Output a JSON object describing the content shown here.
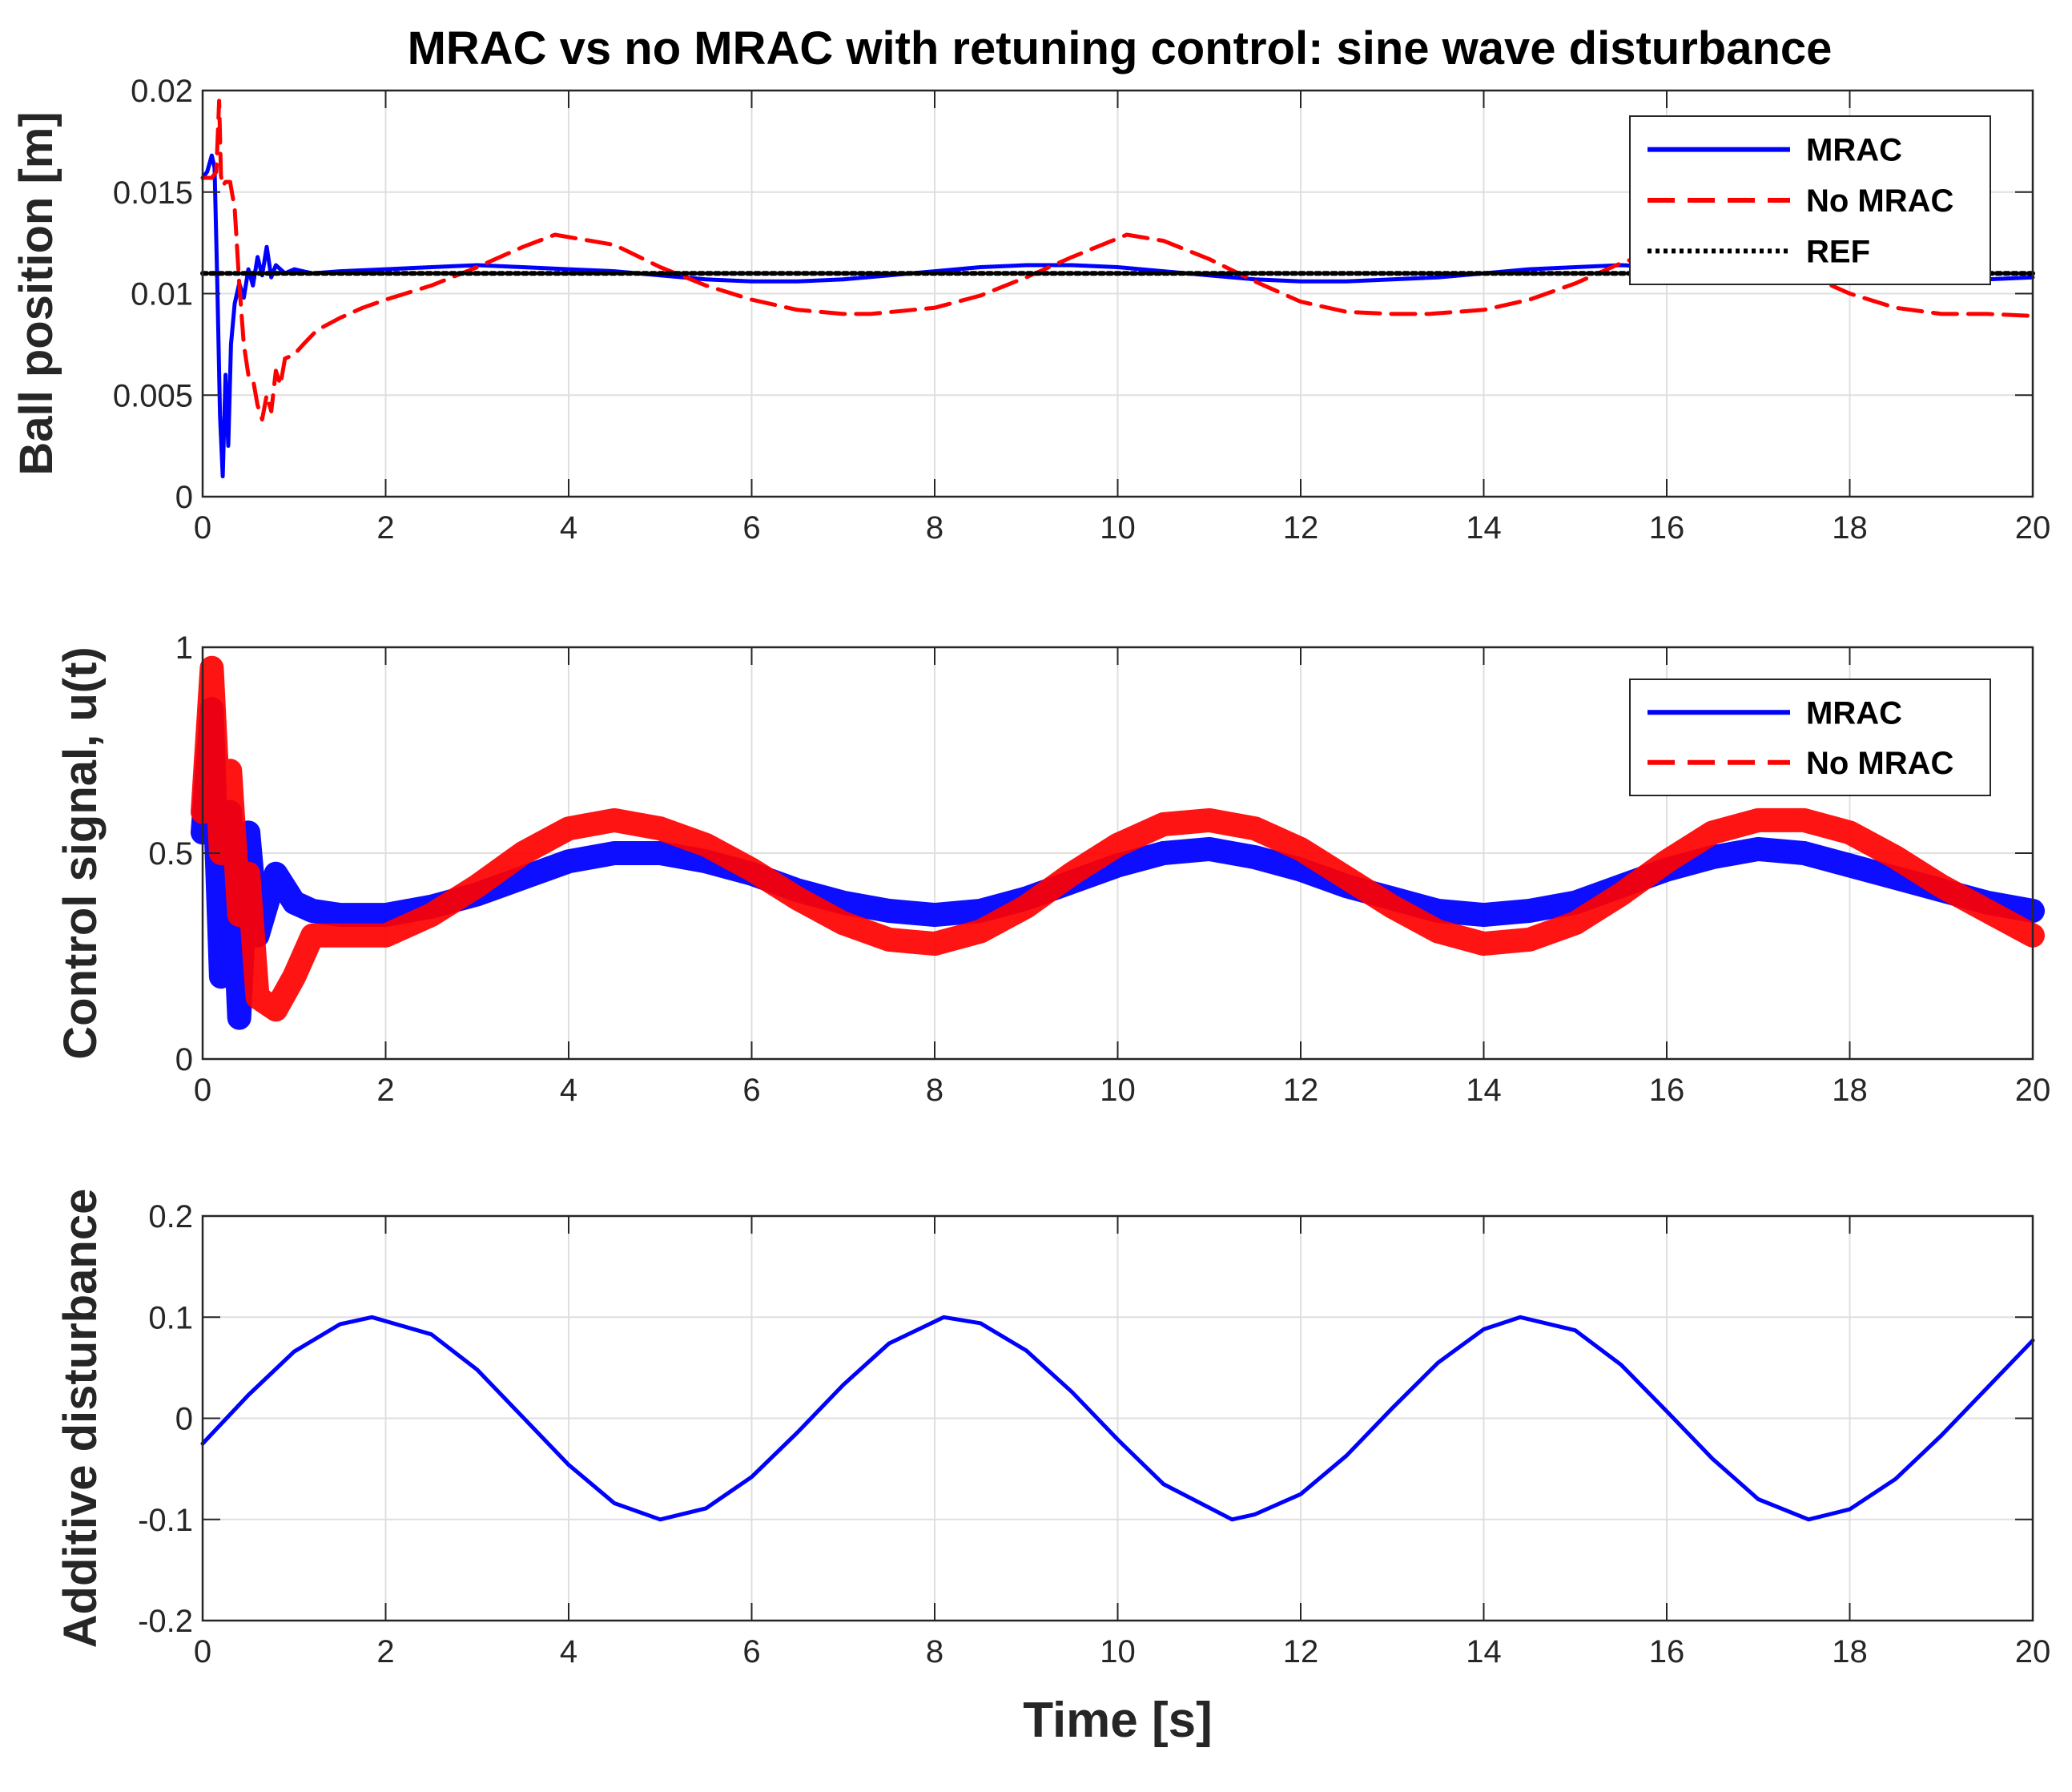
{
  "chart_data": [
    {
      "type": "line",
      "title": "MRAC vs no MRAC with retuning control: sine wave disturbance",
      "xlabel": "",
      "ylabel": "Ball position [m]",
      "xlim": [
        0,
        20
      ],
      "ylim": [
        0,
        0.02
      ],
      "xticks": [
        "0",
        "2",
        "4",
        "6",
        "8",
        "10",
        "12",
        "14",
        "16",
        "18",
        "20"
      ],
      "yticks": [
        "0",
        "0.005",
        "0.01",
        "0.015",
        "0.02"
      ],
      "grid": true,
      "legend_position": "top-right",
      "series": [
        {
          "name": "MRAC",
          "color": "#0000ff",
          "style": "solid",
          "x": [
            0,
            0.05,
            0.1,
            0.13,
            0.16,
            0.19,
            0.22,
            0.25,
            0.28,
            0.31,
            0.35,
            0.4,
            0.45,
            0.5,
            0.55,
            0.6,
            0.65,
            0.7,
            0.75,
            0.8,
            0.9,
            1.0,
            1.2,
            1.5,
            2,
            2.5,
            3,
            3.5,
            4,
            4.5,
            5,
            5.5,
            6,
            6.5,
            7,
            7.5,
            8,
            8.5,
            9,
            9.5,
            10,
            10.5,
            11,
            11.5,
            12,
            12.5,
            13,
            13.5,
            14,
            14.5,
            15,
            15.5,
            16,
            16.5,
            17,
            17.5,
            18,
            18.5,
            19,
            19.5,
            20
          ],
          "y": [
            0.0157,
            0.016,
            0.0168,
            0.0162,
            0.0105,
            0.004,
            0.001,
            0.006,
            0.0025,
            0.0075,
            0.0095,
            0.0105,
            0.0098,
            0.0112,
            0.0104,
            0.0118,
            0.0109,
            0.0123,
            0.0108,
            0.0114,
            0.011,
            0.0112,
            0.011,
            0.0111,
            0.0112,
            0.0113,
            0.0114,
            0.0113,
            0.0112,
            0.0111,
            0.0109,
            0.0107,
            0.0106,
            0.0106,
            0.0107,
            0.0109,
            0.0111,
            0.0113,
            0.0114,
            0.0114,
            0.0113,
            0.0111,
            0.0109,
            0.0107,
            0.0106,
            0.0106,
            0.0107,
            0.0108,
            0.011,
            0.0112,
            0.0113,
            0.0114,
            0.0113,
            0.0112,
            0.011,
            0.0108,
            0.0107,
            0.0106,
            0.0106,
            0.0107,
            0.0108
          ]
        },
        {
          "name": "No MRAC",
          "color": "#ff0000",
          "style": "dashed",
          "x": [
            0,
            0.1,
            0.15,
            0.18,
            0.2,
            0.22,
            0.25,
            0.3,
            0.35,
            0.4,
            0.45,
            0.5,
            0.55,
            0.6,
            0.65,
            0.7,
            0.75,
            0.8,
            0.85,
            0.9,
            1.0,
            1.1,
            1.25,
            1.5,
            1.75,
            2,
            2.5,
            3,
            3.5,
            3.85,
            4.5,
            5,
            5.5,
            6,
            6.5,
            7,
            7.3,
            8,
            8.5,
            9,
            9.5,
            10.1,
            10.5,
            11,
            11.5,
            12,
            12.5,
            13,
            13.4,
            14,
            14.5,
            15,
            15.5,
            16,
            16.3,
            17,
            17.5,
            18,
            18.5,
            19,
            19.5,
            20
          ],
          "y": [
            0.0157,
            0.0157,
            0.016,
            0.0195,
            0.0158,
            0.0153,
            0.0155,
            0.0155,
            0.0142,
            0.0105,
            0.0075,
            0.006,
            0.0058,
            0.0045,
            0.0038,
            0.005,
            0.0042,
            0.0062,
            0.0055,
            0.0068,
            0.007,
            0.0075,
            0.0082,
            0.0088,
            0.0093,
            0.0097,
            0.0104,
            0.0113,
            0.0123,
            0.0129,
            0.0124,
            0.0113,
            0.0104,
            0.0097,
            0.0092,
            0.009,
            0.009,
            0.0093,
            0.0099,
            0.0108,
            0.0118,
            0.0129,
            0.0126,
            0.0117,
            0.0106,
            0.0096,
            0.0091,
            0.009,
            0.009,
            0.0092,
            0.0097,
            0.0105,
            0.0115,
            0.0123,
            0.0124,
            0.0118,
            0.011,
            0.01,
            0.0093,
            0.009,
            0.009,
            0.0089
          ]
        },
        {
          "name": "REF",
          "color": "#000000",
          "style": "dotted",
          "x": [
            0,
            20
          ],
          "y": [
            0.011,
            0.011
          ]
        }
      ]
    },
    {
      "type": "line",
      "title": "",
      "xlabel": "",
      "ylabel": "Control signal, u(t)",
      "xlim": [
        0,
        20
      ],
      "ylim": [
        0,
        1
      ],
      "xticks": [
        "0",
        "2",
        "4",
        "6",
        "8",
        "10",
        "12",
        "14",
        "16",
        "18",
        "20"
      ],
      "yticks": [
        "0",
        "0.5",
        "1"
      ],
      "grid": true,
      "legend_position": "top-right",
      "series": [
        {
          "name": "MRAC",
          "color": "#0000ff",
          "style": "solid",
          "x": [
            0,
            0.1,
            0.2,
            0.3,
            0.4,
            0.5,
            0.6,
            0.8,
            1.0,
            1.2,
            1.5,
            2,
            2.5,
            3,
            3.5,
            4,
            4.5,
            5,
            5.5,
            6,
            6.5,
            7,
            7.5,
            8,
            8.5,
            9,
            9.5,
            10,
            10.5,
            11,
            11.5,
            12,
            12.5,
            13,
            13.5,
            14,
            14.5,
            15,
            15.5,
            16,
            16.5,
            17,
            17.5,
            18,
            18.5,
            19,
            19.5,
            20
          ],
          "y": [
            0.55,
            0.85,
            0.2,
            0.6,
            0.1,
            0.55,
            0.3,
            0.45,
            0.38,
            0.36,
            0.35,
            0.35,
            0.37,
            0.4,
            0.44,
            0.48,
            0.5,
            0.5,
            0.48,
            0.45,
            0.41,
            0.38,
            0.36,
            0.35,
            0.36,
            0.39,
            0.43,
            0.47,
            0.5,
            0.51,
            0.49,
            0.46,
            0.42,
            0.39,
            0.36,
            0.35,
            0.36,
            0.38,
            0.42,
            0.46,
            0.49,
            0.51,
            0.5,
            0.47,
            0.44,
            0.41,
            0.38,
            0.36
          ]
        },
        {
          "name": "No MRAC",
          "color": "#ff0000",
          "style": "dashed",
          "x": [
            0,
            0.1,
            0.2,
            0.3,
            0.4,
            0.5,
            0.6,
            0.8,
            1.0,
            1.2,
            1.5,
            2,
            2.5,
            3,
            3.5,
            4,
            4.5,
            5,
            5.5,
            6,
            6.5,
            7,
            7.5,
            8,
            8.5,
            9,
            9.5,
            10,
            10.5,
            11,
            11.5,
            12,
            12.5,
            13,
            13.5,
            14,
            14.5,
            15,
            15.5,
            16,
            16.5,
            17,
            17.5,
            18,
            18.5,
            19,
            19.5,
            20
          ],
          "y": [
            0.6,
            0.95,
            0.5,
            0.7,
            0.35,
            0.45,
            0.15,
            0.12,
            0.2,
            0.3,
            0.3,
            0.3,
            0.35,
            0.42,
            0.5,
            0.56,
            0.58,
            0.56,
            0.52,
            0.46,
            0.39,
            0.33,
            0.29,
            0.28,
            0.31,
            0.37,
            0.45,
            0.52,
            0.57,
            0.58,
            0.56,
            0.51,
            0.44,
            0.37,
            0.31,
            0.28,
            0.29,
            0.33,
            0.4,
            0.48,
            0.55,
            0.58,
            0.58,
            0.55,
            0.49,
            0.42,
            0.36,
            0.3
          ]
        }
      ]
    },
    {
      "type": "line",
      "title": "",
      "xlabel": "Time [s]",
      "ylabel": "Additive disturbance",
      "xlim": [
        0,
        20
      ],
      "ylim": [
        -0.2,
        0.2
      ],
      "xticks": [
        "0",
        "2",
        "4",
        "6",
        "8",
        "10",
        "12",
        "14",
        "16",
        "18",
        "20"
      ],
      "yticks": [
        "-0.2",
        "-0.1",
        "0",
        "0.1",
        "0.2"
      ],
      "grid": true,
      "series": [
        {
          "color": "#0000ff",
          "style": "solid",
          "x": [
            0,
            0.5,
            1,
            1.5,
            1.85,
            2.5,
            3,
            3.5,
            4,
            4.5,
            5,
            5.5,
            6,
            6.5,
            7,
            7.5,
            8.1,
            8.5,
            9,
            9.5,
            10,
            10.5,
            11.25,
            11.5,
            12,
            12.5,
            13,
            13.5,
            14,
            14.4,
            15,
            15.5,
            16,
            16.5,
            17,
            17.55,
            18,
            18.5,
            19,
            19.5,
            20
          ],
          "y": [
            -0.025,
            0.023,
            0.066,
            0.093,
            0.1,
            0.083,
            0.048,
            0.001,
            -0.046,
            -0.084,
            -0.1,
            -0.089,
            -0.058,
            -0.014,
            0.033,
            0.074,
            0.1,
            0.094,
            0.067,
            0.026,
            -0.021,
            -0.065,
            -0.1,
            -0.095,
            -0.075,
            -0.037,
            0.01,
            0.055,
            0.088,
            0.1,
            0.087,
            0.053,
            0.007,
            -0.04,
            -0.08,
            -0.1,
            -0.09,
            -0.06,
            -0.017,
            0.03,
            0.077
          ]
        }
      ]
    }
  ]
}
